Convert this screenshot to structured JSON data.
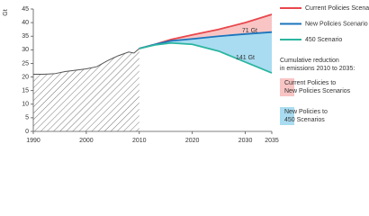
{
  "chart_data": {
    "type": "line",
    "y_label": "Gt",
    "xlim": [
      1990,
      2035
    ],
    "xticks": [
      1990,
      2000,
      2010,
      2020,
      2030,
      2035
    ],
    "ylim": [
      0,
      45
    ],
    "yticks": [
      0,
      5,
      10,
      15,
      20,
      25,
      30,
      35,
      40,
      45
    ],
    "history": {
      "color": "#555555",
      "x": [
        1990,
        1992,
        1994,
        1996,
        1998,
        2000,
        2002,
        2004,
        2006,
        2008,
        2009,
        2010
      ],
      "values": [
        21,
        21,
        21.2,
        22,
        22.5,
        23,
        23.8,
        26,
        27.8,
        29.2,
        28.8,
        30.5
      ]
    },
    "x": [
      2010,
      2013,
      2016,
      2020,
      2025,
      2030,
      2035
    ],
    "series": [
      {
        "name": "Current Policies Scenario",
        "color": "#e8474c",
        "values": [
          30.5,
          32,
          33.8,
          35.5,
          37.5,
          40,
          43
        ]
      },
      {
        "name": "New Policies Scenario",
        "color": "#1b75bc",
        "values": [
          30.5,
          32,
          33.3,
          34,
          35,
          35.8,
          36.5
        ]
      },
      {
        "name": "450 Scenario",
        "color": "#2bb5a0",
        "values": [
          30.5,
          31.8,
          32.5,
          32,
          29.5,
          25.5,
          21.5
        ]
      }
    ],
    "areas_title_lines": [
      "Cumulative reduction",
      "in emissions 2010 to 2035:"
    ],
    "areas": [
      {
        "label_lines": [
          "Current Policies to",
          "New Policies Scenarios"
        ],
        "color": "#f8c5c4",
        "annotation": "71 Gt"
      },
      {
        "label_lines": [
          "New Policies to",
          "450 Scenarios"
        ],
        "color": "#a9dcf1",
        "annotation": "141 Gt"
      }
    ]
  }
}
